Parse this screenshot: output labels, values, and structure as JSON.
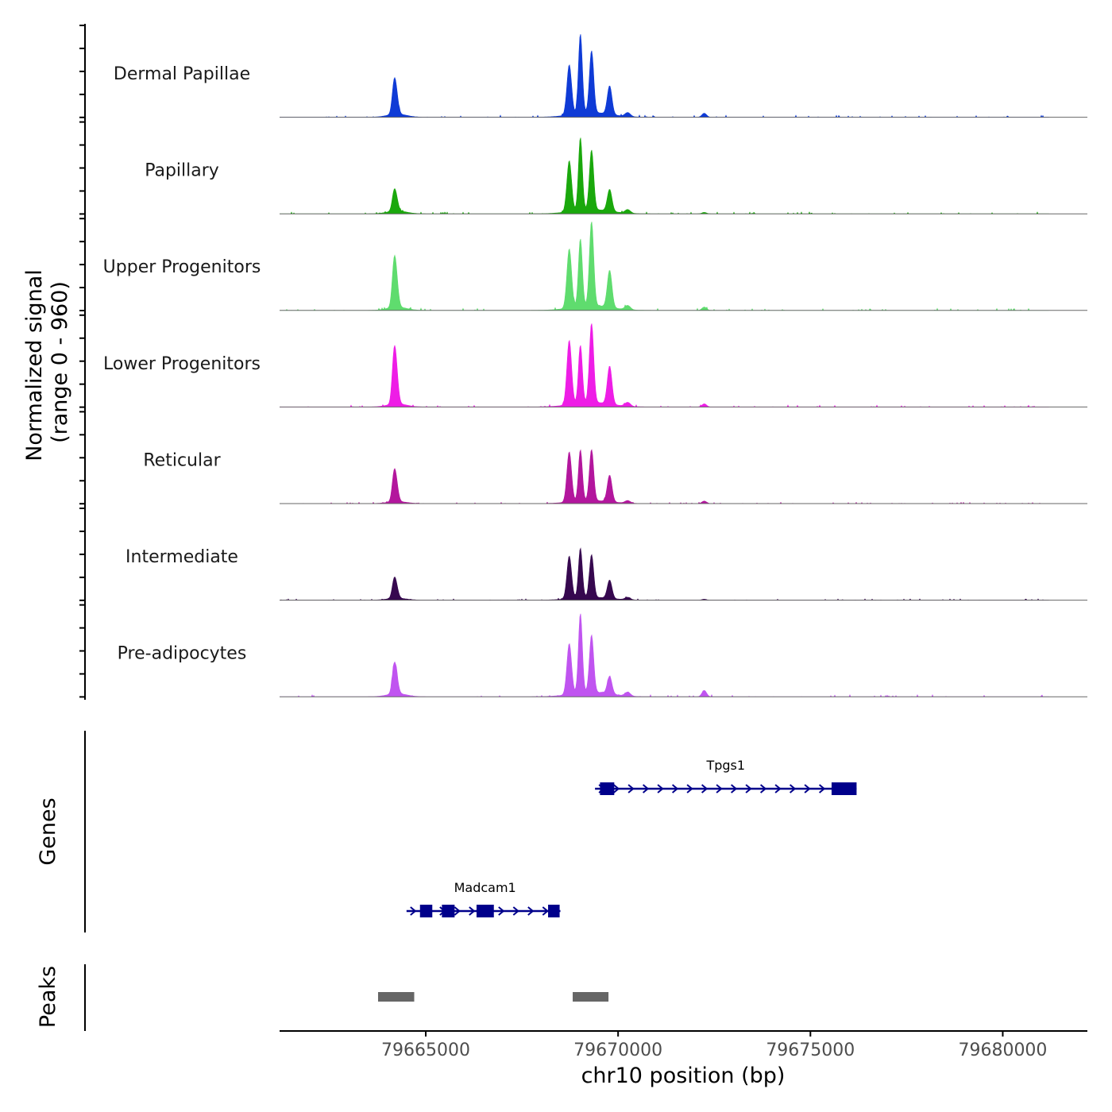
{
  "chart_data": {
    "type": "area",
    "title": "",
    "ylabel_line1": "Normalized signal",
    "ylabel_line2": "(range 0 - 960)",
    "xlabel": "chr10 position (bp)",
    "y_range": [
      0,
      960
    ],
    "x_range": [
      79661200,
      79682200
    ],
    "x_ticks": [
      79665000,
      79670000,
      79675000,
      79680000
    ],
    "x_tick_labels": [
      "79665000",
      "79670000",
      "79675000",
      "79680000"
    ],
    "signal_region": [
      79661200,
      79681200
    ],
    "peak_profile": [
      {
        "center": 79664170,
        "width": 50,
        "rel": 0.3
      },
      {
        "center": 79664230,
        "width": 55,
        "rel": 0.25
      },
      {
        "center": 79668730,
        "width": 60,
        "rel": 0.63
      },
      {
        "center": 79669020,
        "width": 50,
        "rel": 1.0
      },
      {
        "center": 79669310,
        "width": 55,
        "rel": 0.78
      },
      {
        "center": 79669780,
        "width": 60,
        "rel": 0.36
      },
      {
        "center": 79670250,
        "width": 70,
        "rel": 0.05
      },
      {
        "center": 79672240,
        "width": 60,
        "rel": 0.05
      }
    ],
    "series": [
      {
        "name": "Dermal Papillae",
        "color": "#0f3bd6",
        "max": 960,
        "p1": 0.3,
        "p3": 0.63,
        "p4": 1.0,
        "p5": 0.78,
        "p6": 0.36,
        "p8": 0.05
      },
      {
        "name": "Papillary",
        "color": "#1aa80c",
        "max": 880,
        "p1": 0.2,
        "p3": 0.7,
        "p4": 1.0,
        "p5": 0.82,
        "p6": 0.3,
        "p8": 0.02
      },
      {
        "name": "Upper Progenitors",
        "color": "#5fdc6e",
        "max": 1020,
        "p1": 0.4,
        "p3": 0.7,
        "p4": 0.8,
        "p5": 1.0,
        "p6": 0.44,
        "p8": 0.04
      },
      {
        "name": "Lower Progenitors",
        "color": "#ee1de6",
        "max": 960,
        "p1": 0.48,
        "p3": 0.81,
        "p4": 0.73,
        "p5": 1.0,
        "p6": 0.48,
        "p8": 0.04
      },
      {
        "name": "Reticular",
        "color": "#b3169d",
        "max": 620,
        "p1": 0.42,
        "p3": 0.98,
        "p4": 1.0,
        "p5": 1.0,
        "p6": 0.52,
        "p8": 0.05
      },
      {
        "name": "Intermediate",
        "color": "#36084f",
        "max": 600,
        "p1": 0.28,
        "p3": 0.86,
        "p4": 1.0,
        "p5": 0.86,
        "p6": 0.37,
        "p8": 0.02
      },
      {
        "name": "Pre-adipocytes",
        "color": "#c054f0",
        "max": 960,
        "p1": 0.26,
        "p3": 0.64,
        "p4": 1.0,
        "p5": 0.72,
        "p6": 0.22,
        "p8": 0.08
      }
    ],
    "genes_label": "Genes",
    "genes": [
      {
        "name": "Tpgs1",
        "start": 79669400,
        "end": 79676200,
        "strand": "+",
        "color": "#00008b",
        "exons": [
          [
            79669530,
            79669900
          ],
          [
            79675550,
            79676200
          ]
        ]
      },
      {
        "name": "Madcam1",
        "start": 79664500,
        "end": 79668500,
        "strand": "+",
        "color": "#00008b",
        "exons": [
          [
            79664850,
            79665170
          ],
          [
            79665420,
            79665750
          ],
          [
            79666320,
            79666770
          ],
          [
            79668180,
            79668480
          ]
        ]
      }
    ],
    "peaks_label": "Peaks",
    "peaks_color": "#666666",
    "peaks": [
      [
        79663760,
        79664700
      ],
      [
        79668820,
        79669750
      ]
    ]
  }
}
